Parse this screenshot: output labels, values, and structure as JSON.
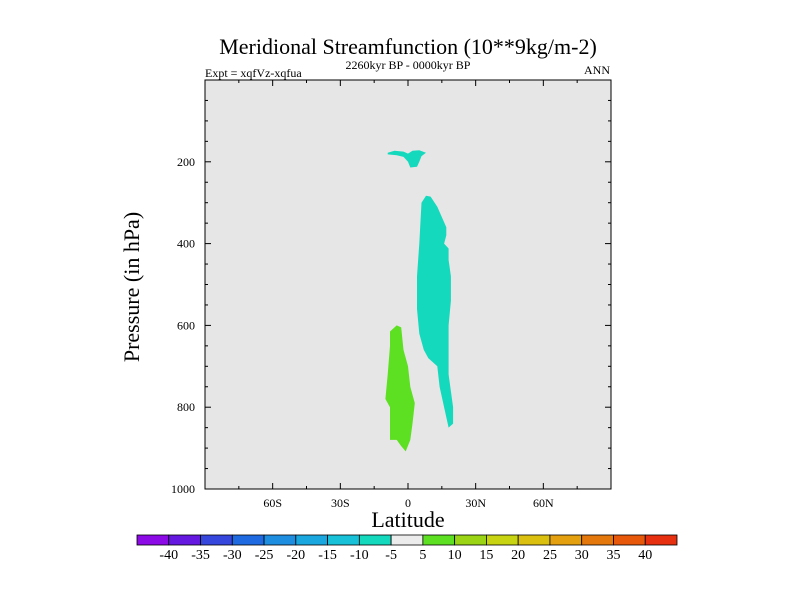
{
  "chart_data": {
    "type": "contour",
    "title": "Meridional Streamfunction (10**9kg/m-2)",
    "left_string": "Expt = xqfVz-xqfua",
    "center_string": "2260kyr BP - 0000kyr BP",
    "right_string": "ANN",
    "xlabel": "Latitude",
    "ylabel": "Pressure (in hPa)",
    "xlim": [
      -90,
      90
    ],
    "ylim": [
      1000,
      0
    ],
    "x_ticks": [
      {
        "value": -60,
        "label": "60S"
      },
      {
        "value": -30,
        "label": "30S"
      },
      {
        "value": 0,
        "label": "0"
      },
      {
        "value": 30,
        "label": "30N"
      },
      {
        "value": 60,
        "label": "60N"
      }
    ],
    "y_ticks": [
      {
        "value": 200,
        "label": "200"
      },
      {
        "value": 400,
        "label": "400"
      },
      {
        "value": 600,
        "label": "600"
      },
      {
        "value": 800,
        "label": "800"
      },
      {
        "value": 1000,
        "label": "1000"
      }
    ],
    "background_color": "#e6e6e6",
    "regions": [
      {
        "name": "negative-upper-cell",
        "level": "-10 to -5",
        "color": "#14d9bd",
        "points": [
          [
            -9,
            178
          ],
          [
            -6,
            173
          ],
          [
            -2,
            175
          ],
          [
            0,
            180
          ],
          [
            2,
            173
          ],
          [
            5,
            172
          ],
          [
            8,
            178
          ],
          [
            6,
            186
          ],
          [
            5,
            200
          ],
          [
            4,
            212
          ],
          [
            1,
            214
          ],
          [
            0,
            200
          ],
          [
            -2,
            188
          ],
          [
            -5,
            184
          ],
          [
            -9,
            182
          ]
        ]
      },
      {
        "name": "negative-mid-cell",
        "level": "-10 to -5",
        "color": "#14d9bd",
        "points": [
          [
            6,
            300
          ],
          [
            8,
            283
          ],
          [
            10,
            285
          ],
          [
            13,
            310
          ],
          [
            15,
            335
          ],
          [
            17,
            360
          ],
          [
            17,
            380
          ],
          [
            16,
            400
          ],
          [
            18,
            412
          ],
          [
            18,
            440
          ],
          [
            19,
            480
          ],
          [
            19,
            540
          ],
          [
            18,
            600
          ],
          [
            18,
            660
          ],
          [
            18,
            720
          ],
          [
            20,
            800
          ],
          [
            20,
            840
          ],
          [
            18,
            850
          ],
          [
            16,
            800
          ],
          [
            14,
            750
          ],
          [
            13,
            700
          ],
          [
            9,
            680
          ],
          [
            7,
            660
          ],
          [
            5,
            620
          ],
          [
            4,
            560
          ],
          [
            4,
            480
          ],
          [
            5,
            400
          ]
        ]
      },
      {
        "name": "positive-lower-cell",
        "level": "5 to 10",
        "color": "#5de022",
        "points": [
          [
            -8,
            615
          ],
          [
            -5,
            600
          ],
          [
            -3,
            605
          ],
          [
            -2,
            660
          ],
          [
            0,
            700
          ],
          [
            1,
            750
          ],
          [
            3,
            790
          ],
          [
            2,
            840
          ],
          [
            1,
            880
          ],
          [
            -1,
            908
          ],
          [
            -3,
            895
          ],
          [
            -5,
            880
          ],
          [
            -8,
            880
          ],
          [
            -8,
            850
          ],
          [
            -8,
            800
          ],
          [
            -10,
            780
          ],
          [
            -9,
            720
          ],
          [
            -8,
            650
          ]
        ]
      }
    ],
    "colorbar": {
      "labels": [
        "-40",
        "-35",
        "-30",
        "-25",
        "-20",
        "-15",
        "-10",
        "-5",
        "5",
        "10",
        "15",
        "20",
        "25",
        "30",
        "35",
        "40"
      ],
      "colors": [
        "#8b0ae6",
        "#6519e0",
        "#3547dc",
        "#1f6ae0",
        "#1e8ee0",
        "#1aa7e0",
        "#18c0d8",
        "#14d9bd",
        "#ececec",
        "#5de022",
        "#9ad414",
        "#c8d412",
        "#dcc010",
        "#e4a00e",
        "#e4780c",
        "#e8580a",
        "#e63010"
      ]
    }
  }
}
